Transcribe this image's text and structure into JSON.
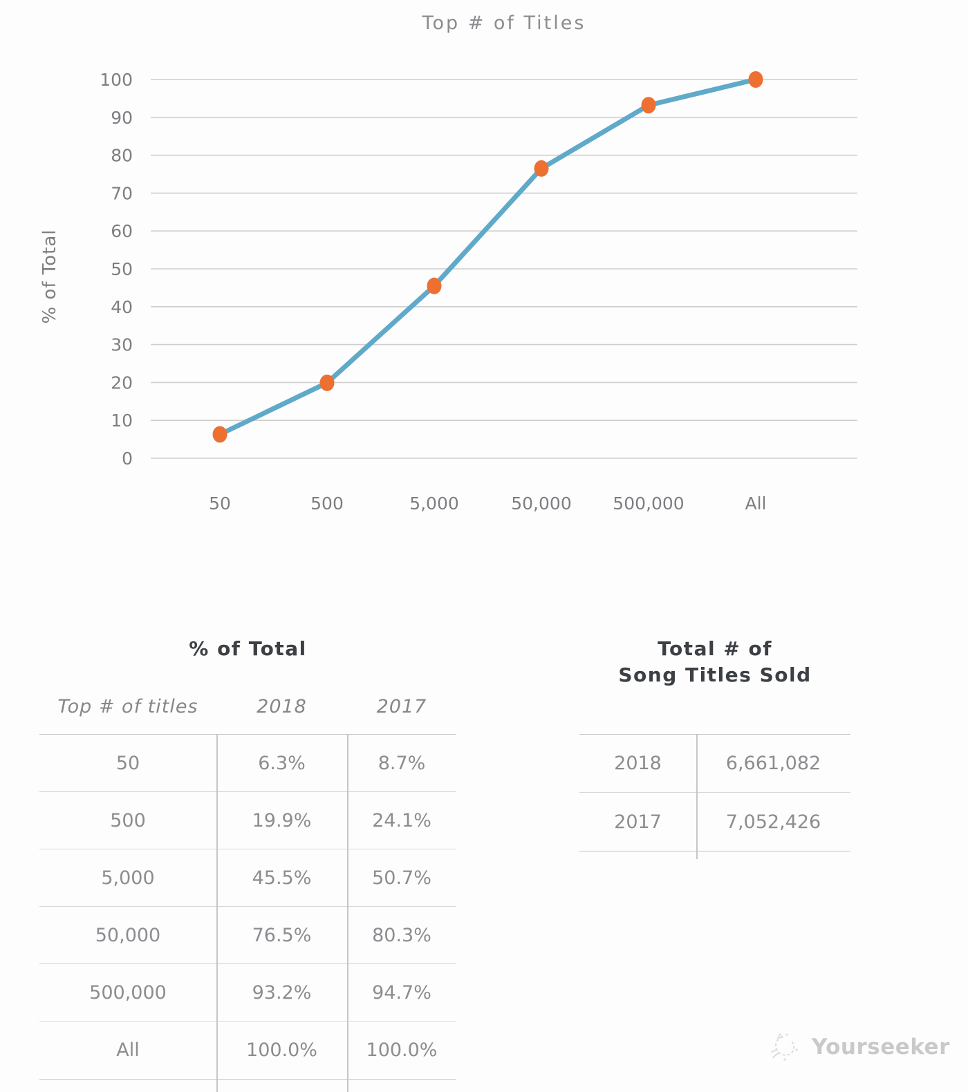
{
  "chart_data": {
    "type": "line",
    "title": "Top # of Titles",
    "categories": [
      "50",
      "500",
      "5,000",
      "50,000",
      "500,000",
      "All"
    ],
    "series": [
      {
        "name": "2018",
        "values": [
          6.3,
          19.9,
          45.5,
          76.5,
          93.2,
          100.0
        ]
      }
    ],
    "xlabel": "",
    "ylabel": "% of Total",
    "ylim": [
      0,
      100
    ],
    "y_ticks": [
      0,
      10,
      20,
      30,
      40,
      50,
      60,
      70,
      80,
      90,
      100
    ],
    "grid": true,
    "legend": false,
    "line_color": "#5FA9C9",
    "marker_color": "#ED7030"
  },
  "tables": {
    "percent_of_total": {
      "title": "% of Total",
      "columns": {
        "label": "Top # of titles",
        "y2018": "2018",
        "y2017": "2017"
      },
      "rows": [
        {
          "label": "50",
          "y2018": "6.3%",
          "y2017": "8.7%"
        },
        {
          "label": "500",
          "y2018": "19.9%",
          "y2017": "24.1%"
        },
        {
          "label": "5,000",
          "y2018": "45.5%",
          "y2017": "50.7%"
        },
        {
          "label": "50,000",
          "y2018": "76.5%",
          "y2017": "80.3%"
        },
        {
          "label": "500,000",
          "y2018": "93.2%",
          "y2017": "94.7%"
        },
        {
          "label": "All",
          "y2018": "100.0%",
          "y2017": "100.0%"
        }
      ]
    },
    "titles_sold": {
      "title_line1": "Total # of",
      "title_line2": "Song Titles Sold",
      "rows": [
        {
          "label": "2018",
          "value": "6,661,082"
        },
        {
          "label": "2017",
          "value": "7,052,426"
        }
      ]
    }
  },
  "watermark": {
    "text": "Yourseeker"
  }
}
